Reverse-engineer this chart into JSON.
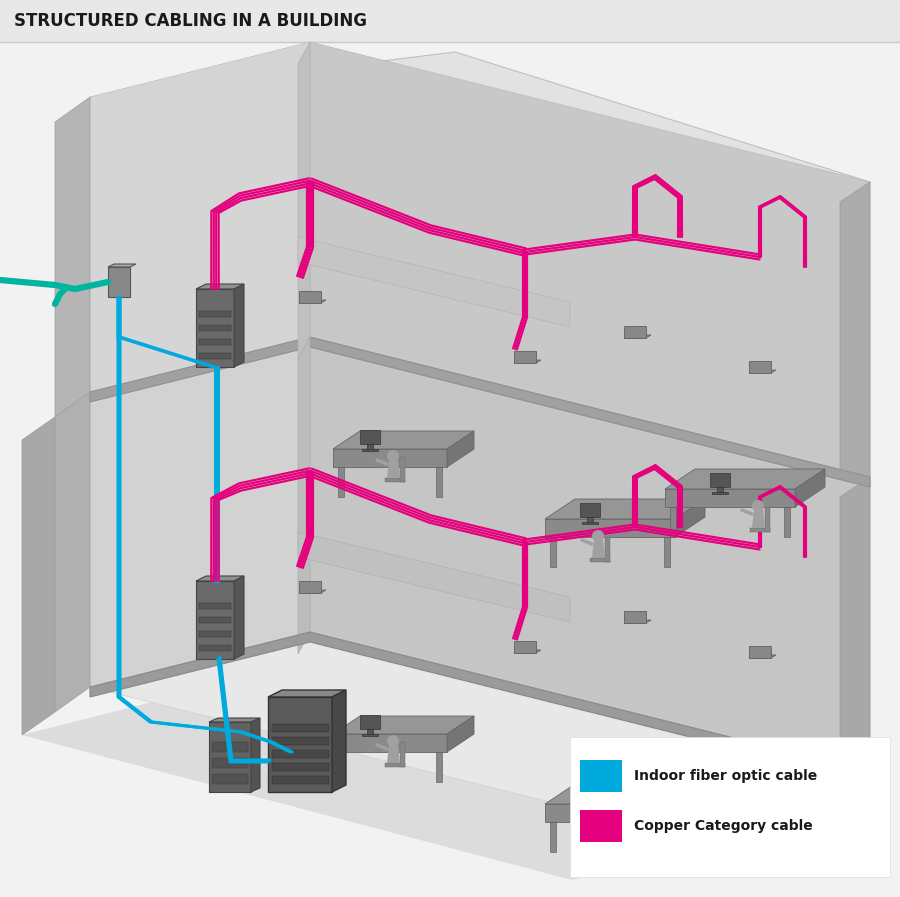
{
  "title": "STRUCTURED CABLING IN A BUILDING",
  "title_fontsize": 12,
  "title_color": "#1a1a1a",
  "bg_color": "#f2f2f2",
  "white": "#ffffff",
  "wall_back_left": "#d0d0d0",
  "wall_back_right": "#c8c8c8",
  "wall_top": "#e8e8e8",
  "wall_left_side": "#b8b8b8",
  "wall_right_side": "#b0b0b0",
  "floor_upper": "#e8e8e8",
  "floor_lower": "#e4e4e4",
  "floor_ground": "#dcdcdc",
  "floor_slab": "#a8a8a8",
  "inner_wall": "#c4c4c4",
  "inner_wall2": "#bababa",
  "server_front": "#6a6a6a",
  "server_top": "#909090",
  "server_side": "#555555",
  "cabinet_front": "#5a5a5a",
  "cabinet_top": "#888888",
  "cabinet_side": "#484848",
  "fiber_color": "#00aadd",
  "copper_color": "#e5007d",
  "teal_color": "#00b5a0",
  "patch_color": "#888888",
  "legend_fiber_label": "Indoor fiber optic cable",
  "legend_copper_label": "Copper Category cable",
  "title_bar_color": "#e8e8e8"
}
